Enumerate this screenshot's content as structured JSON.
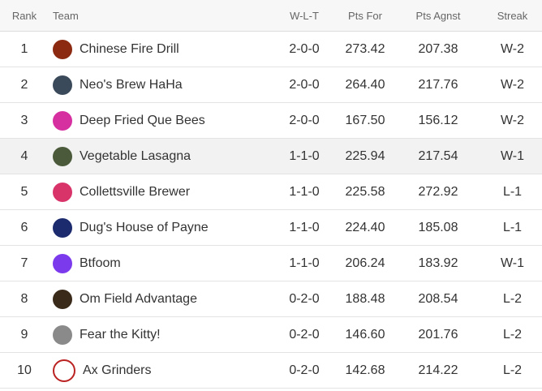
{
  "table": {
    "header": [
      "Rank",
      "Team",
      "W-L-T",
      "Pts For",
      "Pts Agnst",
      "Streak"
    ],
    "rows": [
      [
        "1",
        "Chinese Fire Drill",
        "2-0-0",
        "273.42",
        "207.38",
        "W-2"
      ],
      [
        "2",
        "Neo's Brew HaHa",
        "2-0-0",
        "264.40",
        "217.76",
        "W-2"
      ],
      [
        "3",
        "Deep Fried Que Bees",
        "2-0-0",
        "167.50",
        "156.12",
        "W-2"
      ],
      [
        "4",
        "Vegetable Lasagna",
        "1-1-0",
        "225.94",
        "217.54",
        "W-1"
      ],
      [
        "5",
        "Collettsville Brewer",
        "1-1-0",
        "225.58",
        "272.92",
        "L-1"
      ],
      [
        "6",
        "Dug's House of Payne",
        "1-1-0",
        "224.40",
        "185.08",
        "L-1"
      ],
      [
        "7",
        "Btfoom",
        "1-1-0",
        "206.24",
        "183.92",
        "W-1"
      ],
      [
        "8",
        "Om Field Advantage",
        "0-2-0",
        "188.48",
        "208.54",
        "L-2"
      ],
      [
        "9",
        "Fear the Kitty!",
        "0-2-0",
        "146.60",
        "201.76",
        "L-2"
      ],
      [
        "10",
        "Ax Grinders",
        "0-2-0",
        "142.68",
        "214.22",
        "L-2"
      ]
    ]
  }
}
